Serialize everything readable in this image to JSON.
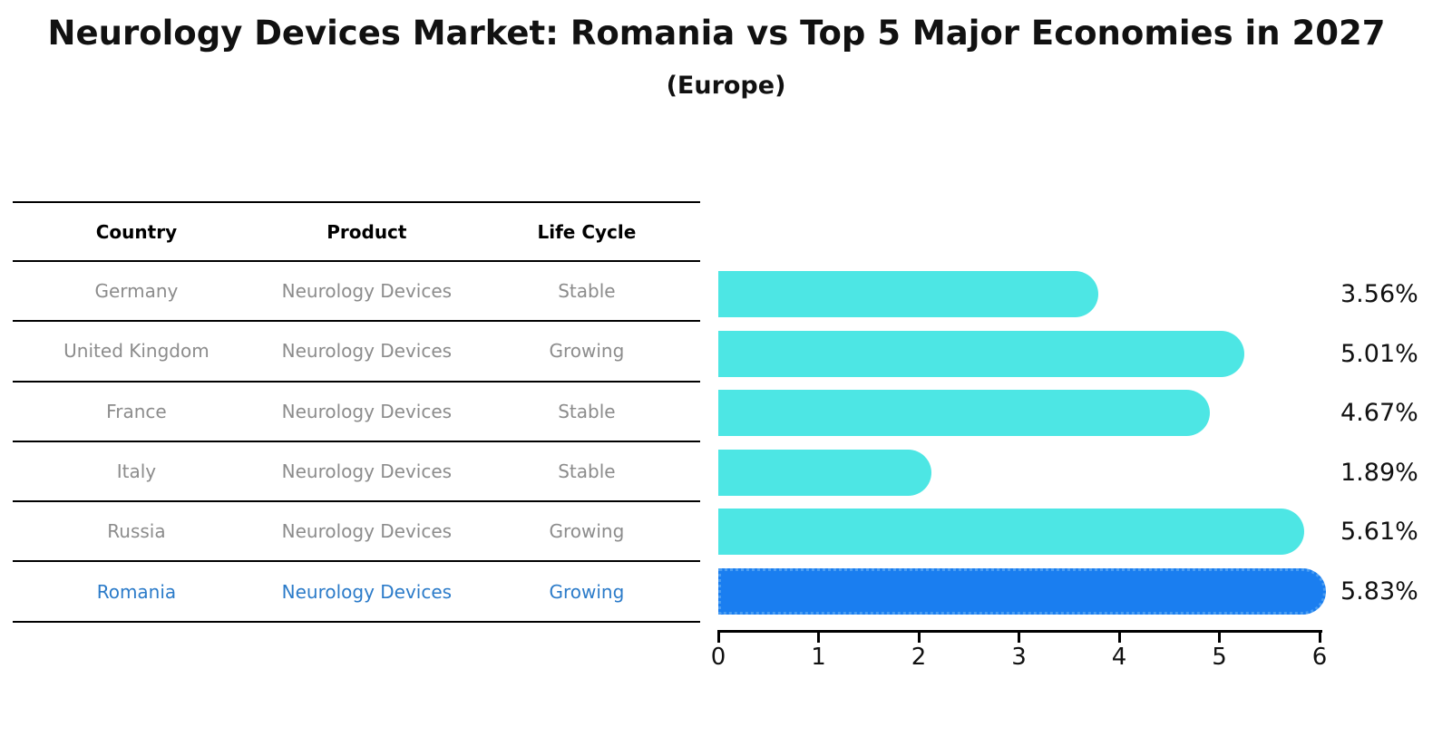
{
  "title": "Neurology Devices Market: Romania vs Top 5 Major Economies in 2027",
  "subtitle": "(Europe)",
  "table": {
    "headers": [
      "Country",
      "Product",
      "Life Cycle"
    ],
    "rows": [
      {
        "country": "Germany",
        "product": "Neurology Devices",
        "life_cycle": "Stable",
        "highlighted": false
      },
      {
        "country": "United Kingdom",
        "product": "Neurology Devices",
        "life_cycle": "Growing",
        "highlighted": false
      },
      {
        "country": "France",
        "product": "Neurology Devices",
        "life_cycle": "Stable",
        "highlighted": false
      },
      {
        "country": "Italy",
        "product": "Neurology Devices",
        "life_cycle": "Stable",
        "highlighted": false
      },
      {
        "country": "Russia",
        "product": "Neurology Devices",
        "life_cycle": "Growing",
        "highlighted": false
      },
      {
        "country": "Romania",
        "product": "Neurology Devices",
        "life_cycle": "Growing",
        "highlighted": true
      }
    ]
  },
  "chart_data": {
    "type": "bar",
    "orientation": "horizontal",
    "title": "Neurology Devices Market: Romania vs Top 5 Major Economies in 2027",
    "subtitle": "(Europe)",
    "categories": [
      "Germany",
      "United Kingdom",
      "France",
      "Italy",
      "Russia",
      "Romania"
    ],
    "values": [
      3.56,
      5.01,
      4.67,
      1.89,
      5.61,
      5.83
    ],
    "value_labels": [
      "3.56%",
      "5.01%",
      "4.67%",
      "1.89%",
      "5.61%",
      "5.83%"
    ],
    "xlim": [
      0,
      6
    ],
    "xticks": [
      0,
      1,
      2,
      3,
      4,
      5,
      6
    ],
    "grid": false,
    "legend": false,
    "bar_color": "#4de6e4",
    "highlight_index": 5,
    "highlight_color": "#1a7ef0",
    "highlight_border_color": "#4a9df2",
    "highlight_text_color": "#2b7bc9"
  }
}
